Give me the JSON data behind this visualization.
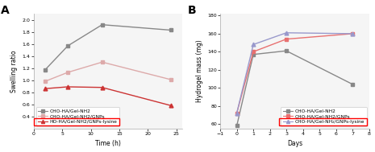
{
  "chart_A": {
    "title": "A",
    "xlabel": "Time (h)",
    "ylabel": "Swelling ratio",
    "xlim": [
      0,
      26
    ],
    "ylim": [
      0.2,
      2.1
    ],
    "xticks": [
      0,
      5,
      10,
      15,
      20,
      25
    ],
    "yticks": [
      0.4,
      0.6,
      0.8,
      1.0,
      1.2,
      1.4,
      1.6,
      1.8,
      2.0
    ],
    "series": [
      {
        "label": "CHO-HA/Gel-NH2",
        "x": [
          2,
          6,
          12,
          24
        ],
        "y": [
          1.17,
          1.57,
          1.92,
          1.83
        ],
        "color": "#888888",
        "marker": "s",
        "linewidth": 1.0,
        "markersize": 3.5
      },
      {
        "label": "CHO-HA/Gel-NH2/GNPs",
        "x": [
          2,
          6,
          12,
          24
        ],
        "y": [
          0.98,
          1.13,
          1.3,
          1.01
        ],
        "color": "#ddaaaa",
        "marker": "s",
        "linewidth": 1.0,
        "markersize": 3.5
      },
      {
        "label": "HO-HA/Gel-NH2/GNPs-lysine",
        "x": [
          2,
          6,
          12,
          24
        ],
        "y": [
          0.86,
          0.89,
          0.88,
          0.58
        ],
        "color": "#cc3333",
        "marker": "^",
        "linewidth": 1.0,
        "markersize": 3.5
      }
    ]
  },
  "chart_B": {
    "title": "B",
    "xlabel": "Days",
    "ylabel": "Hydrogel mass (mg)",
    "xlim": [
      -1,
      8
    ],
    "ylim": [
      55,
      182
    ],
    "xticks": [
      -1,
      0,
      1,
      2,
      3,
      4,
      5,
      6,
      7,
      8
    ],
    "yticks": [
      60,
      80,
      100,
      120,
      140,
      160,
      180
    ],
    "series": [
      {
        "label": "CHO-HA/Gel-NH2",
        "x": [
          0,
          1,
          3,
          7
        ],
        "y": [
          58,
          137,
          141,
          104
        ],
        "color": "#888888",
        "marker": "s",
        "linewidth": 1.0,
        "markersize": 3.5
      },
      {
        "label": "CHO-HA/Gel-NH2/GNPs",
        "x": [
          0,
          1,
          3,
          7
        ],
        "y": [
          72,
          140,
          154,
          160
        ],
        "color": "#e87070",
        "marker": "s",
        "linewidth": 1.0,
        "markersize": 3.5
      },
      {
        "label": "CHO-HA/Gel-NH₂/GNPs-lysine",
        "x": [
          0,
          1,
          3,
          7
        ],
        "y": [
          72,
          148,
          161,
          160
        ],
        "color": "#9999cc",
        "marker": "^",
        "linewidth": 1.0,
        "markersize": 3.5
      }
    ]
  },
  "fig_bgcolor": "#ffffff"
}
